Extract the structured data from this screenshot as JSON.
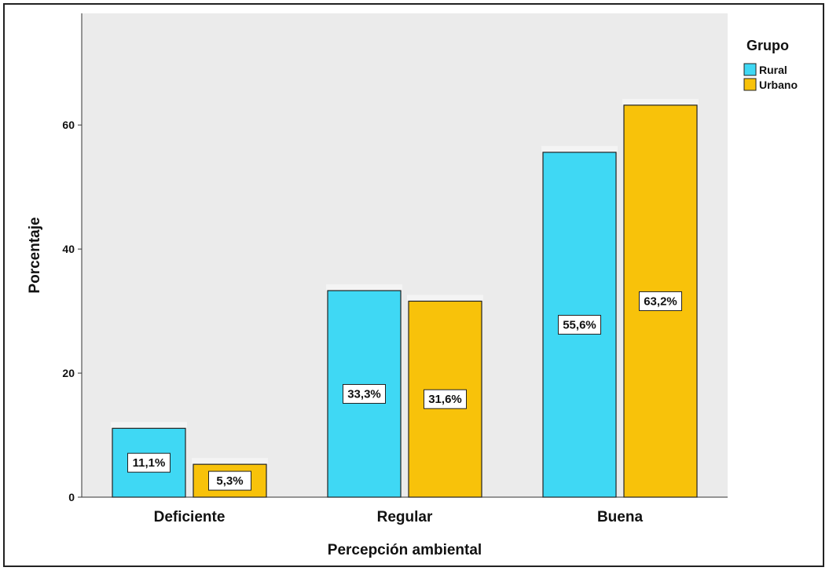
{
  "chart_data": {
    "type": "bar",
    "title": "",
    "xlabel": "Percepción ambiental",
    "ylabel": "Porcentaje",
    "categories": [
      "Deficiente",
      "Regular",
      "Buena"
    ],
    "series": [
      {
        "name": "Rural",
        "color": "#3FD8F4",
        "values": [
          11.1,
          33.3,
          55.6
        ],
        "labels": [
          "11,1%",
          "33,3%",
          "55,6%"
        ]
      },
      {
        "name": "Urbano",
        "color": "#F8C20A",
        "values": [
          5.3,
          31.6,
          63.2
        ],
        "labels": [
          "5,3%",
          "31,6%",
          "63,2%"
        ]
      }
    ],
    "ylim": [
      0,
      78
    ],
    "yticks": [
      0,
      20,
      40,
      60
    ],
    "ytick_labels": [
      "0",
      "20",
      "40",
      "60"
    ],
    "legend": {
      "title": "Grupo",
      "placement": "right"
    },
    "grid": false,
    "plot_background": "#EBEBEB"
  }
}
